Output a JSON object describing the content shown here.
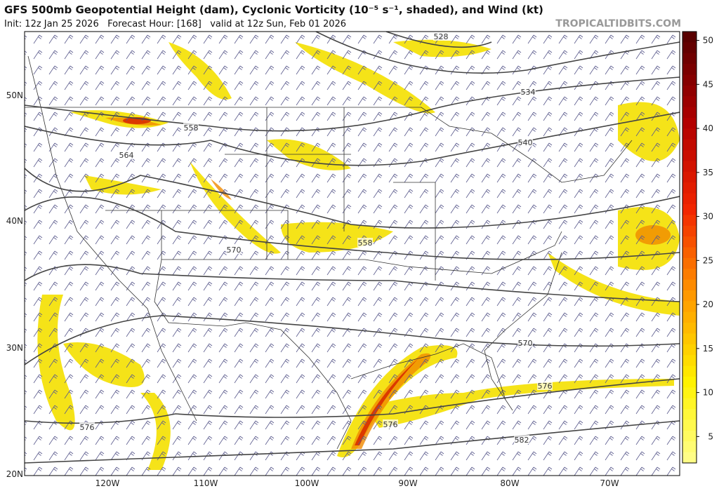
{
  "header": {
    "title": "GFS 500mb Geopotential Height (dam), Cyclonic Vorticity (10⁻⁵ s⁻¹, shaded), and Wind (kt)",
    "subtitle": "Init: 12z Jan 25 2026   Forecast Hour: [168]   valid at 12z Sun, Feb 01 2026",
    "site": "TROPICALTIDBITS.COM"
  },
  "map": {
    "lat_labels": [
      "50N",
      "40N",
      "30N",
      "20N"
    ],
    "lon_labels": [
      "120W",
      "110W",
      "100W",
      "90W",
      "80W",
      "70W"
    ],
    "contour_labels": [
      "528",
      "534",
      "540",
      "558",
      "564",
      "570",
      "558",
      "570",
      "576",
      "576",
      "576",
      "582"
    ]
  },
  "colorbar": {
    "range": [
      2,
      51
    ],
    "ticks": [
      5,
      10,
      15,
      20,
      25,
      30,
      35,
      40,
      45,
      50
    ]
  }
}
